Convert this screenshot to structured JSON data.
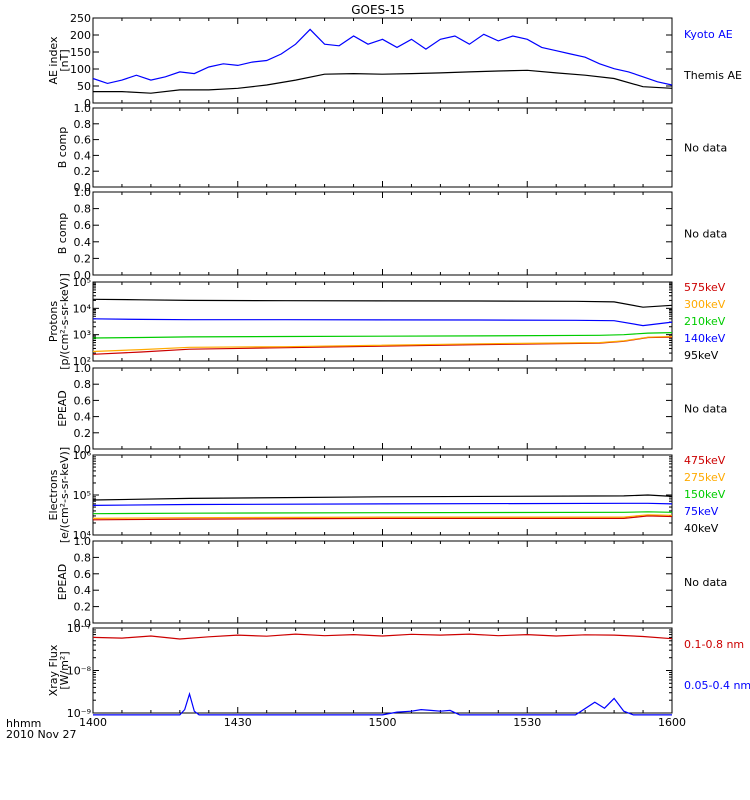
{
  "title": "GOES-15",
  "time_axis": {
    "ticks": [
      "1400",
      "1430",
      "1500",
      "1530",
      "1600"
    ],
    "label": "hhmm",
    "date": "2010 Nov 27"
  },
  "chart_data": [
    {
      "type": "line",
      "ylabel": [
        "AE index",
        "[nT]"
      ],
      "yscale": "linear",
      "ylim": [
        0,
        260
      ],
      "yticks": [
        "0",
        "50",
        "100",
        "150",
        "200",
        "250"
      ],
      "series": [
        {
          "name": "Kyoto AE",
          "color": "#0000ff",
          "x": [
            0,
            3,
            6,
            9,
            12,
            15,
            18,
            21,
            24,
            27,
            30,
            33,
            36,
            39,
            42,
            45,
            48,
            51,
            54,
            57,
            60,
            63,
            66,
            69,
            72,
            75,
            78,
            81,
            84,
            87,
            90,
            93,
            96,
            99,
            102,
            105,
            108,
            111,
            114,
            117,
            120
          ],
          "values": [
            75,
            60,
            70,
            85,
            70,
            80,
            95,
            90,
            110,
            120,
            115,
            125,
            130,
            150,
            180,
            225,
            180,
            175,
            205,
            180,
            195,
            170,
            195,
            165,
            195,
            205,
            180,
            210,
            190,
            205,
            195,
            170,
            160,
            150,
            140,
            120,
            105,
            95,
            80,
            65,
            55
          ]
        },
        {
          "name": "Themis AE",
          "color": "#000000",
          "x": [
            0,
            6,
            12,
            18,
            24,
            30,
            36,
            42,
            48,
            54,
            60,
            66,
            72,
            78,
            84,
            90,
            96,
            102,
            108,
            114,
            120
          ],
          "values": [
            35,
            35,
            30,
            40,
            40,
            45,
            55,
            70,
            88,
            90,
            88,
            90,
            92,
            95,
            98,
            100,
            92,
            85,
            75,
            50,
            45
          ]
        }
      ]
    },
    {
      "type": "line",
      "ylabel": [
        "B comp"
      ],
      "ylim": [
        0,
        1.0
      ],
      "yticks": [
        "0.0",
        "0.2",
        "0.4",
        "0.6",
        "0.8",
        "1.0"
      ],
      "status": "No data",
      "series": []
    },
    {
      "type": "line",
      "ylabel": [
        "B comp"
      ],
      "ylim": [
        0,
        1.0
      ],
      "yticks": [
        "0.0",
        "0.2",
        "0.4",
        "0.6",
        "0.8",
        "1.0"
      ],
      "status": "No data",
      "series": []
    },
    {
      "type": "line",
      "ylabel": [
        "Protons",
        "[p/(cm²-s-sr-keV)]"
      ],
      "yscale": "log",
      "ylim": [
        100,
        100000
      ],
      "yticks": [
        "10²",
        "10³",
        "10⁴",
        "10⁵"
      ],
      "series": [
        {
          "name": "575keV",
          "color": "#cc0000",
          "x": [
            0,
            10,
            20,
            40,
            80,
            105,
            110,
            115,
            120
          ],
          "values": [
            180,
            220,
            280,
            320,
            420,
            480,
            560,
            780,
            800
          ]
        },
        {
          "name": "300keV",
          "color": "#ffaa00",
          "x": [
            0,
            10,
            20,
            40,
            80,
            105,
            110,
            115,
            120
          ],
          "values": [
            230,
            270,
            330,
            350,
            450,
            500,
            580,
            800,
            850
          ]
        },
        {
          "name": "210keV",
          "color": "#00cc00",
          "x": [
            0,
            10,
            20,
            40,
            80,
            105,
            110,
            115,
            120
          ],
          "values": [
            750,
            780,
            820,
            850,
            900,
            950,
            1000,
            1150,
            1200
          ]
        },
        {
          "name": "140keV",
          "color": "#0000ff",
          "x": [
            0,
            10,
            20,
            40,
            80,
            100,
            108,
            114,
            120
          ],
          "values": [
            4000,
            3800,
            3700,
            3700,
            3600,
            3500,
            3400,
            2200,
            3000
          ]
        },
        {
          "name": "95keV",
          "color": "#000000",
          "x": [
            0,
            10,
            20,
            40,
            80,
            100,
            108,
            114,
            120
          ],
          "values": [
            22000,
            21000,
            20000,
            19500,
            19000,
            18500,
            17500,
            11000,
            13000
          ]
        }
      ]
    },
    {
      "type": "line",
      "ylabel": [
        "EPEAD"
      ],
      "ylim": [
        0,
        1.0
      ],
      "yticks": [
        "0.0",
        "0.2",
        "0.4",
        "0.6",
        "0.8",
        "1.0"
      ],
      "status": "No data",
      "series": []
    },
    {
      "type": "line",
      "ylabel": [
        "Electrons",
        "[e/(cm²-s-sr-keV)]"
      ],
      "yscale": "log",
      "ylim": [
        10000,
        1000000
      ],
      "yticks": [
        "10⁴",
        "10⁵",
        "10⁶"
      ],
      "series": [
        {
          "name": "475keV",
          "color": "#cc0000",
          "x": [
            0,
            20,
            60,
            110,
            115,
            120
          ],
          "values": [
            24000,
            25000,
            26000,
            26000,
            30000,
            29000
          ]
        },
        {
          "name": "275keV",
          "color": "#ffaa00",
          "x": [
            0,
            20,
            60,
            110,
            115,
            120
          ],
          "values": [
            26000,
            27000,
            28000,
            28000,
            32000,
            31000
          ]
        },
        {
          "name": "150keV",
          "color": "#00cc00",
          "x": [
            0,
            20,
            60,
            110,
            115,
            120
          ],
          "values": [
            34000,
            35000,
            36000,
            37000,
            38000,
            37000
          ]
        },
        {
          "name": "75keV",
          "color": "#0000ff",
          "x": [
            0,
            20,
            60,
            110,
            115,
            120
          ],
          "values": [
            55000,
            58000,
            60000,
            62000,
            62000,
            60000
          ]
        },
        {
          "name": "40keV",
          "color": "#000000",
          "x": [
            0,
            20,
            60,
            110,
            115,
            120
          ],
          "values": [
            75000,
            82000,
            90000,
            95000,
            100000,
            92000
          ]
        }
      ]
    },
    {
      "type": "line",
      "ylabel": [
        "EPEAD"
      ],
      "ylim": [
        0,
        1.0
      ],
      "yticks": [
        "0.0",
        "0.2",
        "0.4",
        "0.6",
        "0.8",
        "1.0"
      ],
      "status": "No data",
      "series": []
    },
    {
      "type": "line",
      "ylabel": [
        "Xray Flux",
        "[W/m²]"
      ],
      "yscale": "log",
      "ylim": [
        1e-09,
        1e-07
      ],
      "yticks": [
        "10⁻⁹",
        "10⁻⁸",
        "10⁻⁷"
      ],
      "series": [
        {
          "name": "0.1-0.8 nm",
          "color": "#cc0000",
          "x": [
            0,
            6,
            12,
            18,
            24,
            30,
            36,
            42,
            48,
            54,
            60,
            66,
            72,
            78,
            84,
            90,
            96,
            102,
            108,
            114,
            120
          ],
          "values": [
            6e-08,
            5.8e-08,
            6.5e-08,
            5.5e-08,
            6.2e-08,
            6.8e-08,
            6.4e-08,
            7.2e-08,
            6.6e-08,
            7e-08,
            6.5e-08,
            7.1e-08,
            6.8e-08,
            7.2e-08,
            6.6e-08,
            7e-08,
            6.5e-08,
            6.9e-08,
            6.8e-08,
            6.3e-08,
            5.6e-08
          ]
        },
        {
          "name": "0.05-0.4 nm",
          "color": "#0000ff",
          "x": [
            0,
            10,
            18,
            19,
            20,
            21,
            22,
            30,
            60,
            63,
            66,
            68,
            70,
            72,
            74,
            76,
            80,
            100,
            104,
            106,
            108,
            110,
            112,
            115,
            120
          ],
          "values": [
            9e-10,
            9e-10,
            9e-10,
            1.2e-09,
            2.8e-09,
            1.1e-09,
            9e-10,
            9e-10,
            9e-10,
            1.05e-09,
            1.1e-09,
            1.2e-09,
            1.15e-09,
            1.1e-09,
            1.15e-09,
            9e-10,
            9e-10,
            9e-10,
            1.8e-09,
            1.3e-09,
            2.2e-09,
            1.1e-09,
            9e-10,
            9e-10,
            9e-10
          ]
        }
      ]
    }
  ]
}
